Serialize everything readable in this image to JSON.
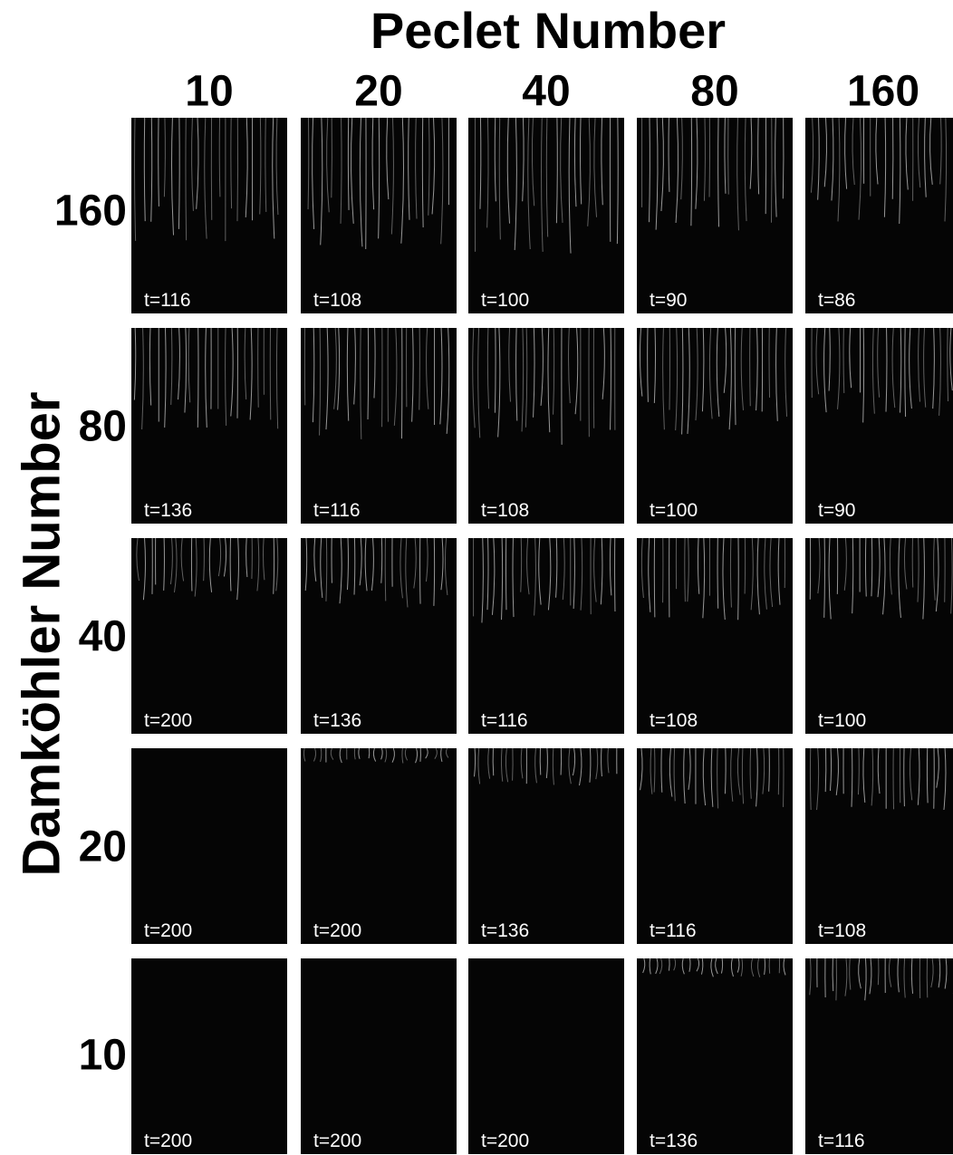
{
  "title_top": "Peclet Number",
  "title_side": "Damköhler Number",
  "columns": [
    "10",
    "20",
    "40",
    "80",
    "160"
  ],
  "rows": [
    "160",
    "80",
    "40",
    "20",
    "10"
  ],
  "cells": [
    [
      "t=116",
      "t=108",
      "t=100",
      "t=90",
      "t=86"
    ],
    [
      "t=136",
      "t=116",
      "t=108",
      "t=100",
      "t=90"
    ],
    [
      "t=200",
      "t=136",
      "t=116",
      "t=108",
      "t=100"
    ],
    [
      "t=200",
      "t=200",
      "t=136",
      "t=116",
      "t=108"
    ],
    [
      "t=200",
      "t=200",
      "t=200",
      "t=136",
      "t=116"
    ]
  ]
}
